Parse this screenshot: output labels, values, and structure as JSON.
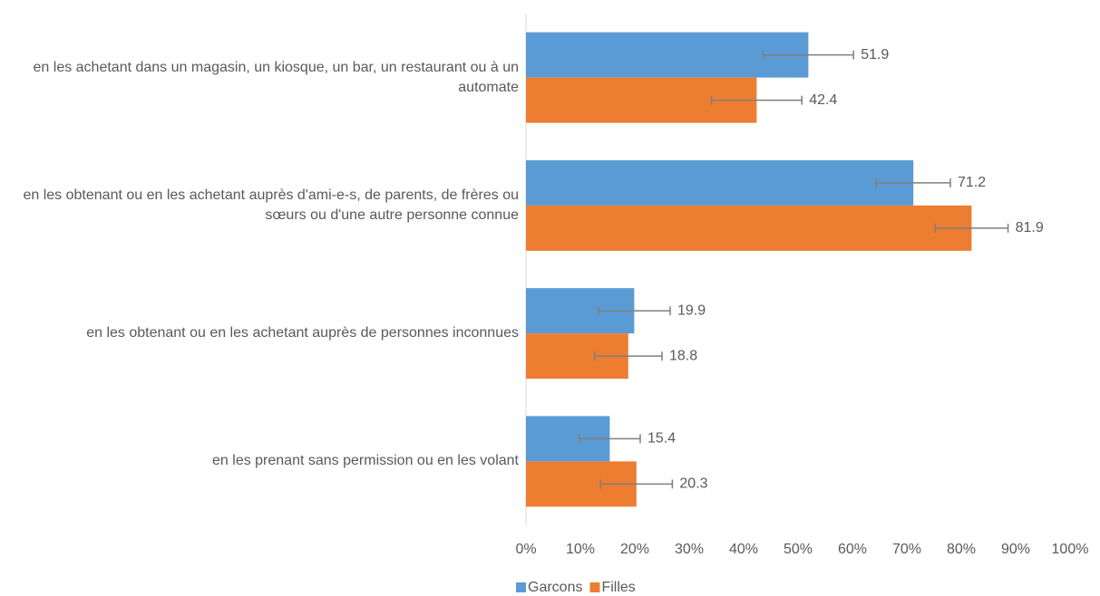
{
  "chart_data": {
    "type": "bar",
    "orientation": "horizontal",
    "categories": [
      "en les achetant dans un magasin, un kiosque, un bar, un restaurant ou à un automate",
      "en les obtenant ou en les achetant auprès d'ami-e-s, de parents, de frères ou sœurs ou d'une autre personne connue",
      "en les obtenant ou en les achetant auprès de personnes inconnues",
      "en les prenant sans permission ou en les volant"
    ],
    "series": [
      {
        "name": "Garcons",
        "color": "#5b9bd5",
        "values": [
          51.9,
          71.2,
          19.9,
          15.4
        ],
        "errors": [
          8.3,
          6.8,
          6.6,
          5.6
        ]
      },
      {
        "name": "Filles",
        "color": "#ed7d31",
        "values": [
          42.4,
          81.9,
          18.8,
          20.3
        ],
        "errors": [
          8.3,
          6.7,
          6.2,
          6.6
        ]
      }
    ],
    "xlim": [
      0,
      100
    ],
    "xticks": [
      {
        "value": 0,
        "label": "0%"
      },
      {
        "value": 10,
        "label": "10%"
      },
      {
        "value": 20,
        "label": "20%"
      },
      {
        "value": 30,
        "label": "30%"
      },
      {
        "value": 40,
        "label": "40%"
      },
      {
        "value": 50,
        "label": "50%"
      },
      {
        "value": 60,
        "label": "60%"
      },
      {
        "value": 70,
        "label": "70%"
      },
      {
        "value": 80,
        "label": "80%"
      },
      {
        "value": 90,
        "label": "90%"
      },
      {
        "value": 100,
        "label": "100%"
      }
    ],
    "grid": false,
    "legend": "bottom",
    "error_color": "#7f7f7f"
  }
}
